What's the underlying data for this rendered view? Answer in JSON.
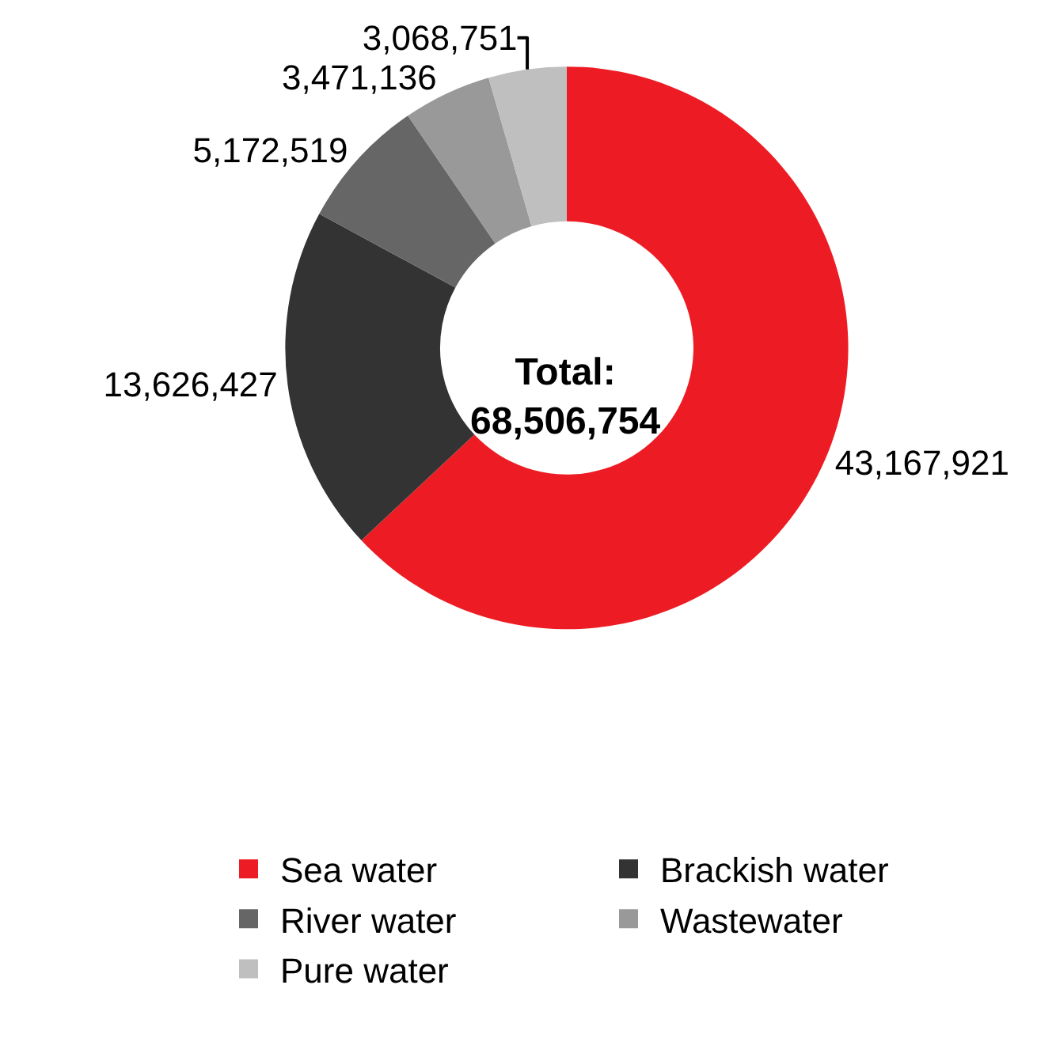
{
  "chart_data": {
    "type": "donut",
    "categories": [
      "Sea water",
      "Brackish water",
      "River water",
      "Wastewater",
      "Pure water"
    ],
    "values": [
      43167921,
      13626427,
      5172519,
      3471136,
      3068751
    ],
    "colors": [
      "#ed1c24",
      "#333333",
      "#666666",
      "#999999",
      "#bfbfbf"
    ],
    "value_labels": [
      "43,167,921",
      "13,626,427",
      "5,172,519",
      "3,471,136",
      "3,068,751"
    ],
    "annotations": [
      "Total:\n68,506,754"
    ],
    "legend": "bottom"
  }
}
